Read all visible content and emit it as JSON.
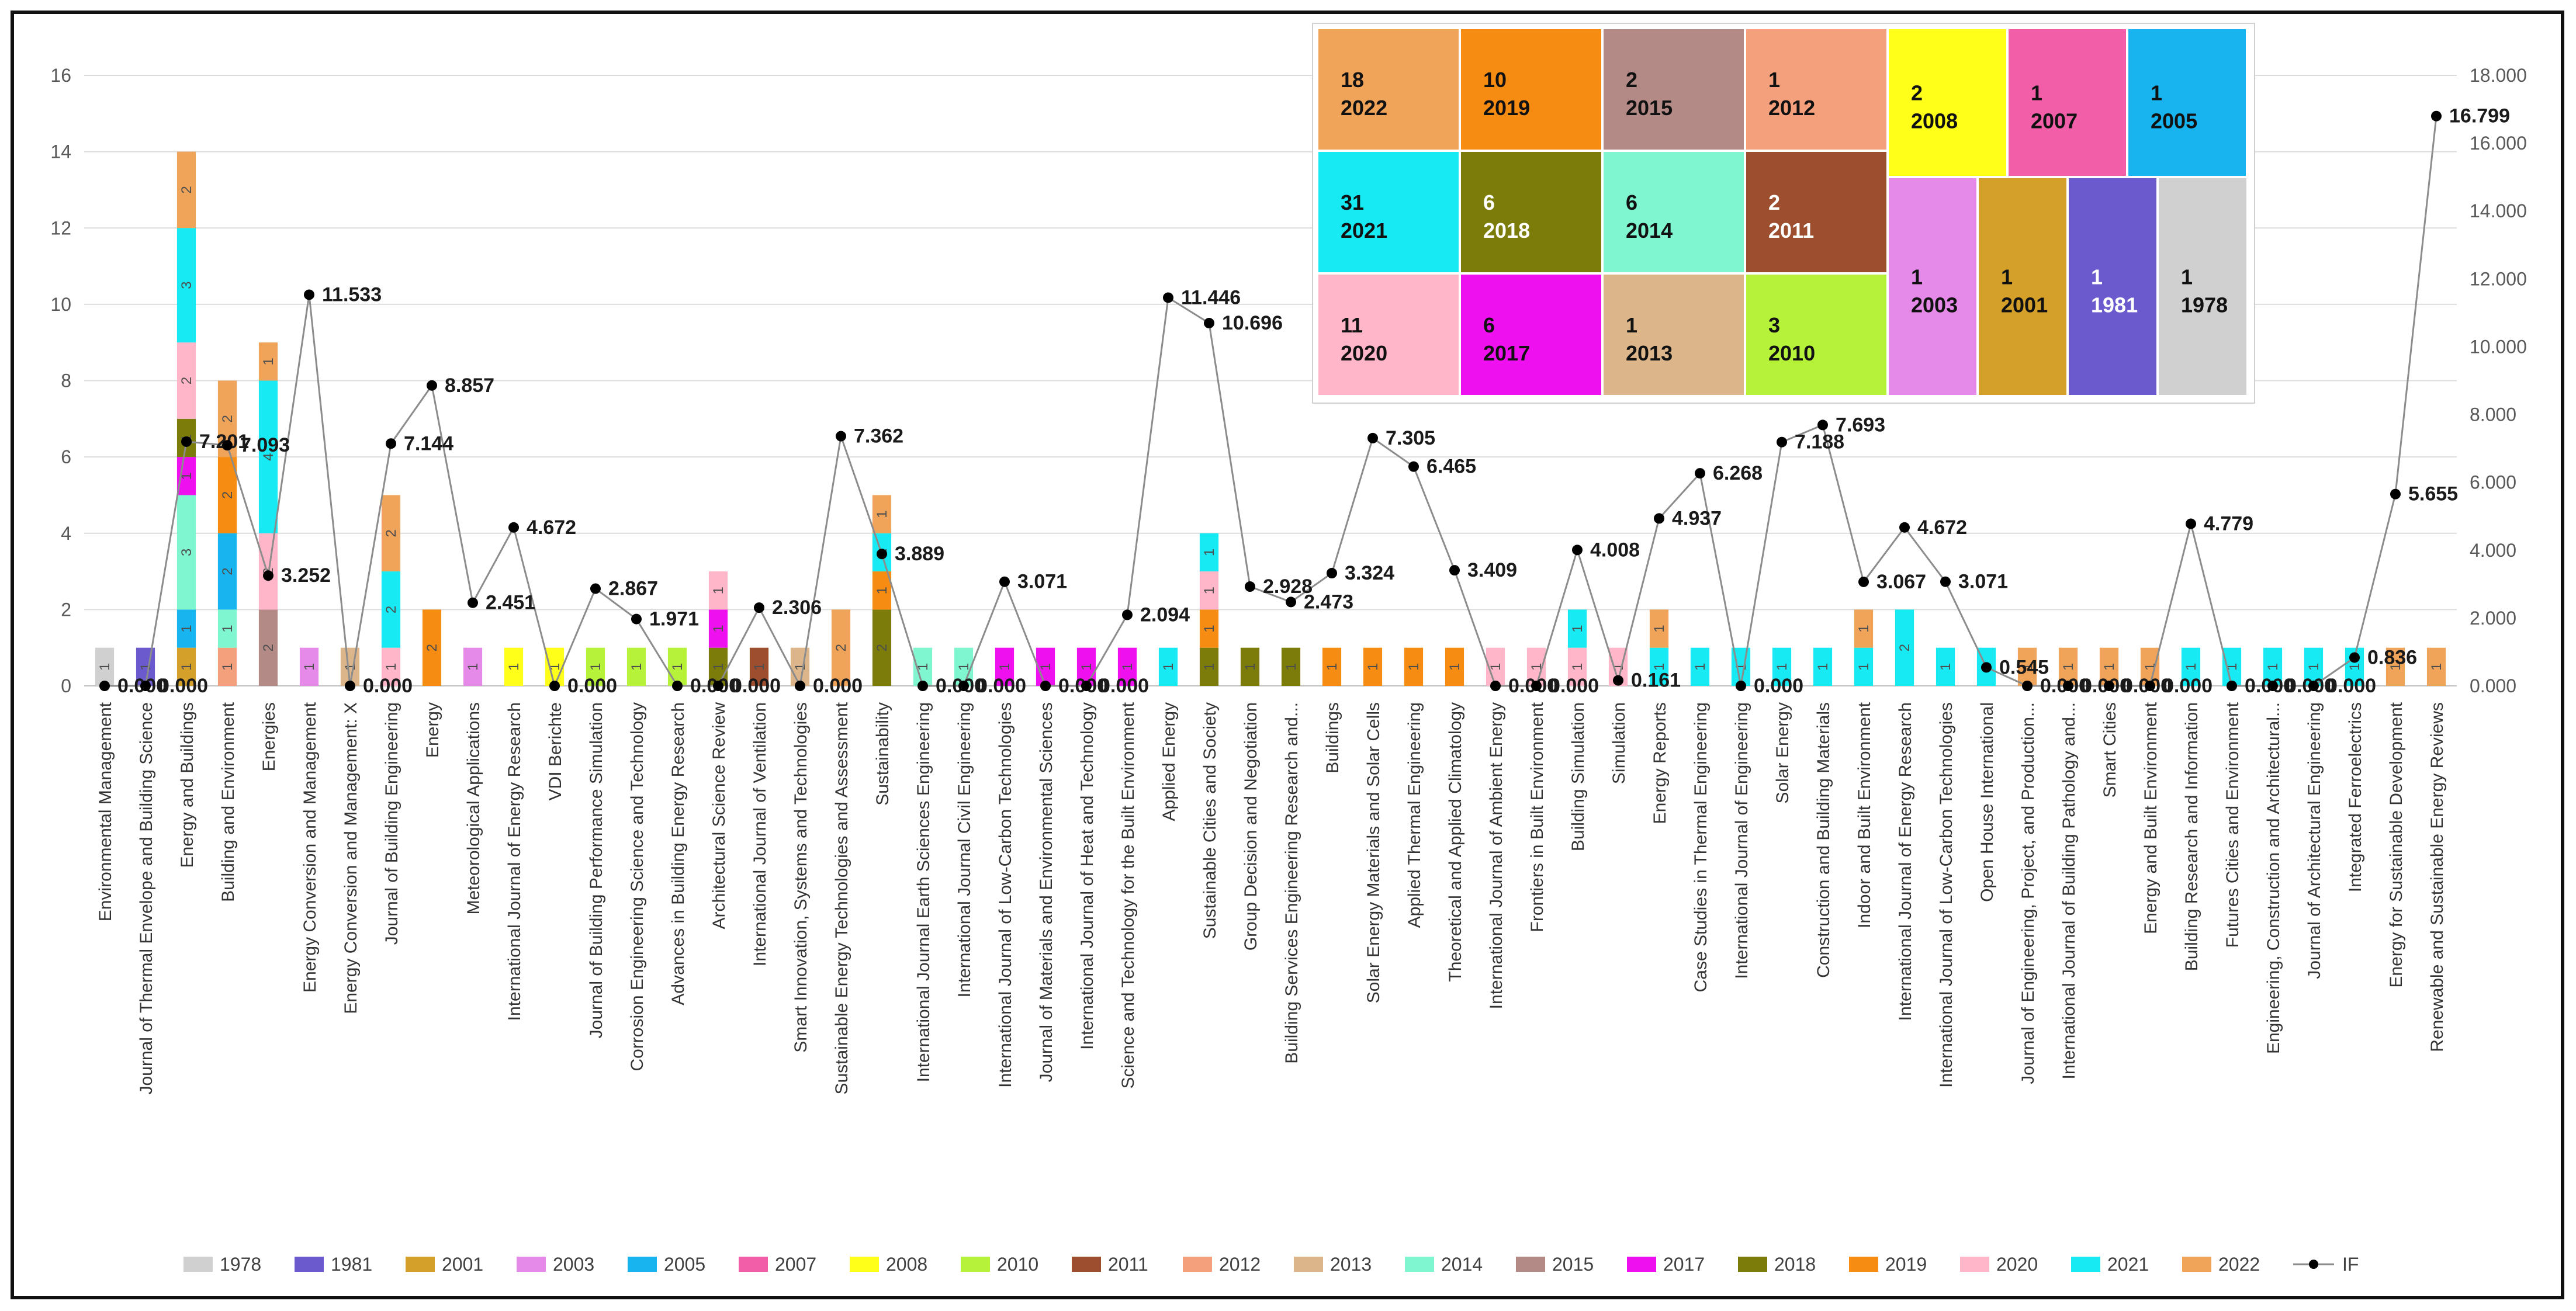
{
  "chart_data": {
    "type": "bar",
    "subtype": "stacked-bar-with-line-secondary-axis",
    "title": "",
    "xlabel": "",
    "ylabel": "",
    "ylim": [
      0,
      16
    ],
    "y_ticks": [
      "0",
      "2",
      "4",
      "6",
      "8",
      "10",
      "12",
      "14",
      "16"
    ],
    "y2lim": [
      0,
      18
    ],
    "y2_ticks": [
      "0.000",
      "2.000",
      "4.000",
      "6.000",
      "8.000",
      "10.000",
      "12.000",
      "14.000",
      "16.000",
      "18.000"
    ],
    "legend_position": "bottom",
    "legend": [
      {
        "name": "1978",
        "color": "#d0d0d0"
      },
      {
        "name": "1981",
        "color": "#6a5acd"
      },
      {
        "name": "2001",
        "color": "#d4a02a"
      },
      {
        "name": "2003",
        "color": "#e58ae8"
      },
      {
        "name": "2005",
        "color": "#18b4f0"
      },
      {
        "name": "2007",
        "color": "#f25fa8"
      },
      {
        "name": "2008",
        "color": "#ffff1a"
      },
      {
        "name": "2010",
        "color": "#b6f23a"
      },
      {
        "name": "2011",
        "color": "#9c4e2e"
      },
      {
        "name": "2012",
        "color": "#f5a07c"
      },
      {
        "name": "2013",
        "color": "#dcb68a"
      },
      {
        "name": "2014",
        "color": "#7ff5d0"
      },
      {
        "name": "2015",
        "color": "#b38a85"
      },
      {
        "name": "2017",
        "color": "#ee10ee"
      },
      {
        "name": "2018",
        "color": "#7c7c0a"
      },
      {
        "name": "2019",
        "color": "#f68c12"
      },
      {
        "name": "2020",
        "color": "#ffb6c8"
      },
      {
        "name": "2021",
        "color": "#17eaf2"
      },
      {
        "name": "2022",
        "color": "#f0a45a"
      },
      {
        "name": "IF",
        "color": "#000000"
      }
    ],
    "categories": [
      "Environmental Management",
      "Journal of Thermal Envelope and Building Science",
      "Energy and Buildings",
      "Building and Environment",
      "Energies",
      "Energy Conversion and Management",
      "Energy Conversion and Management: X",
      "Journal of Building Engineering",
      "Energy",
      "Meteorological Applications",
      "International Journal of Energy Research",
      "VDI Berichte",
      "Journal of Building Performance Simulation",
      "Corrosion Engineering Science and Technology",
      "Advances in Building Energy Research",
      "Architectural Science Review",
      "International Journal of Ventilation",
      "Smart Innovation, Systems and Technologies",
      "Sustainable Energy Technologies and Assessment",
      "Sustainability",
      "International Journal Earth Sciences Engineering",
      "International Journal Civil Engineering",
      "International Journal of Low-Carbon Technologies",
      "Journal of Materials and Environmental Sciences",
      "International Journal of Heat and Technology",
      "Science and Technology for the Built Environment",
      "Applied Energy",
      "Sustainable Cities and Society",
      "Group Decision and Negotiation",
      "Building Services Engineering Research and...",
      "Buildings",
      "Solar Energy Materials and Solar Cells",
      "Applied Thermal Engineering",
      "Theoretical and Applied Climatology",
      "International Journal of Ambient Energy",
      "Frontiers in Built Environment",
      "Building Simulation",
      "Simulation",
      "Energy Reports",
      "Case Studies in Thermal Engineering",
      "International Journal of Engineering",
      "Solar Energy",
      "Construction and Building Materials",
      "Indoor and Built Environment",
      "International Journal of Energy Research",
      "International Journal of Low-Carbon Technologies",
      "Open House International",
      "Journal of Engineering, Project, and Production...",
      "International Journal of Building Pathology and...",
      "Smart Cities",
      "Energy and Built Environment",
      "Building Research and Information",
      "Futures Cities and Environment",
      "Engineering, Construction and Architectural...",
      "Journal of Architectural Engineering",
      "Integrated Ferroelectrics",
      "Energy for Sustainable Development",
      "Renewable and Sustainable Energy Reviews"
    ],
    "stacks": [
      [
        {
          "year": "1978",
          "value": 1
        }
      ],
      [
        {
          "year": "1981",
          "value": 1
        }
      ],
      [
        {
          "year": "2001",
          "value": 1
        },
        {
          "year": "2005",
          "value": 1
        },
        {
          "year": "2014",
          "value": 3
        },
        {
          "year": "2017",
          "value": 1
        },
        {
          "year": "2018",
          "value": 1
        },
        {
          "year": "2020",
          "value": 2
        },
        {
          "year": "2021",
          "value": 3
        },
        {
          "year": "2022",
          "value": 2
        }
      ],
      [
        {
          "year": "2012",
          "value": 1
        },
        {
          "year": "2014",
          "value": 1
        },
        {
          "year": "2005",
          "value": 2
        },
        {
          "year": "2019",
          "value": 2
        },
        {
          "year": "2022",
          "value": 2
        }
      ],
      [
        {
          "year": "2015",
          "value": 2
        },
        {
          "year": "2020",
          "value": 2
        },
        {
          "year": "2021",
          "value": 4
        },
        {
          "year": "2022",
          "value": 1
        }
      ],
      [
        {
          "year": "2003",
          "value": 1
        }
      ],
      [
        {
          "year": "2013",
          "value": 1
        }
      ],
      [
        {
          "year": "2020",
          "value": 1
        },
        {
          "year": "2021",
          "value": 2
        },
        {
          "year": "2022",
          "value": 2
        }
      ],
      [
        {
          "year": "2019",
          "value": 2
        }
      ],
      [
        {
          "year": "2003",
          "value": 1
        }
      ],
      [
        {
          "year": "2008",
          "value": 1
        }
      ],
      [
        {
          "year": "2008",
          "value": 1
        }
      ],
      [
        {
          "year": "2010",
          "value": 1
        }
      ],
      [
        {
          "year": "2010",
          "value": 1
        }
      ],
      [
        {
          "year": "2010",
          "value": 1
        }
      ],
      [
        {
          "year": "2018",
          "value": 1
        },
        {
          "year": "2017",
          "value": 1
        },
        {
          "year": "2020",
          "value": 1
        }
      ],
      [
        {
          "year": "2011",
          "value": 1
        }
      ],
      [
        {
          "year": "2013",
          "value": 1
        }
      ],
      [
        {
          "year": "2022",
          "value": 2
        }
      ],
      [
        {
          "year": "2018",
          "value": 2
        },
        {
          "year": "2019",
          "value": 1
        },
        {
          "year": "2021",
          "value": 1
        },
        {
          "year": "2022",
          "value": 1
        }
      ],
      [
        {
          "year": "2014",
          "value": 1
        }
      ],
      [
        {
          "year": "2014",
          "value": 1
        }
      ],
      [
        {
          "year": "2017",
          "value": 1
        }
      ],
      [
        {
          "year": "2017",
          "value": 1
        }
      ],
      [
        {
          "year": "2017",
          "value": 1
        }
      ],
      [
        {
          "year": "2017",
          "value": 1
        }
      ],
      [
        {
          "year": "2021",
          "value": 1
        }
      ],
      [
        {
          "year": "2018",
          "value": 1
        },
        {
          "year": "2019",
          "value": 1
        },
        {
          "year": "2020",
          "value": 1
        },
        {
          "year": "2021",
          "value": 1
        }
      ],
      [
        {
          "year": "2018",
          "value": 1
        }
      ],
      [
        {
          "year": "2018",
          "value": 1
        }
      ],
      [
        {
          "year": "2019",
          "value": 1
        }
      ],
      [
        {
          "year": "2019",
          "value": 1
        }
      ],
      [
        {
          "year": "2019",
          "value": 1
        }
      ],
      [
        {
          "year": "2019",
          "value": 1
        }
      ],
      [
        {
          "year": "2020",
          "value": 1
        }
      ],
      [
        {
          "year": "2020",
          "value": 1
        }
      ],
      [
        {
          "year": "2020",
          "value": 1
        },
        {
          "year": "2021",
          "value": 1
        }
      ],
      [
        {
          "year": "2020",
          "value": 1
        }
      ],
      [
        {
          "year": "2021",
          "value": 1
        },
        {
          "year": "2022",
          "value": 1
        }
      ],
      [
        {
          "year": "2021",
          "value": 1
        }
      ],
      [
        {
          "year": "2021",
          "value": 1
        }
      ],
      [
        {
          "year": "2021",
          "value": 1
        }
      ],
      [
        {
          "year": "2021",
          "value": 1
        }
      ],
      [
        {
          "year": "2021",
          "value": 1
        },
        {
          "year": "2022",
          "value": 1
        }
      ],
      [
        {
          "year": "2021",
          "value": 2
        }
      ],
      [
        {
          "year": "2021",
          "value": 1
        }
      ],
      [
        {
          "year": "2021",
          "value": 1
        }
      ],
      [
        {
          "year": "2022",
          "value": 1
        }
      ],
      [
        {
          "year": "2022",
          "value": 1
        }
      ],
      [
        {
          "year": "2022",
          "value": 1
        }
      ],
      [
        {
          "year": "2022",
          "value": 1
        }
      ],
      [
        {
          "year": "2021",
          "value": 1
        }
      ],
      [
        {
          "year": "2021",
          "value": 1
        }
      ],
      [
        {
          "year": "2021",
          "value": 1
        }
      ],
      [
        {
          "year": "2021",
          "value": 1
        }
      ],
      [
        {
          "year": "2021",
          "value": 1
        }
      ],
      [
        {
          "year": "2022",
          "value": 1
        }
      ],
      [
        {
          "year": "2022",
          "value": 1
        }
      ]
    ],
    "impact_factor": [
      0.0,
      0.0,
      7.201,
      7.093,
      3.252,
      11.533,
      0.0,
      7.144,
      8.857,
      2.451,
      4.672,
      0.0,
      2.867,
      1.971,
      0.0,
      0.0,
      2.306,
      0.0,
      7.362,
      3.889,
      0.0,
      0.0,
      3.071,
      0.0,
      0.0,
      2.094,
      11.446,
      10.696,
      2.928,
      2.473,
      3.324,
      7.305,
      6.465,
      3.409,
      0.0,
      0.0,
      4.008,
      0.161,
      4.937,
      6.268,
      0.0,
      7.188,
      7.693,
      3.067,
      4.672,
      3.071,
      0.545,
      0.0,
      0.0,
      0.0,
      0.0,
      4.779,
      0.0,
      0.0,
      0.0,
      0.836,
      5.655,
      16.799
    ],
    "if_labels": [
      "0.000",
      "0.000",
      "7.201",
      "7.093",
      "3.252",
      "11.533",
      "0.000",
      "7.144",
      "8.857",
      "2.451",
      "4.672",
      "0.000",
      "2.867",
      "1.971",
      "0.000",
      "0.000",
      "2.306",
      "0.000",
      "7.362",
      "3.889",
      "0.000",
      "0.000",
      "3.071",
      "0.000",
      "0.000",
      "2.094",
      "11.446",
      "10.696",
      "2.928",
      "2.473",
      "3.324",
      "7.305",
      "6.465",
      "3.409",
      "0.000",
      "0.000",
      "4.008",
      "0.161",
      "4.937",
      "6.268",
      "0.000",
      "7.188",
      "7.693",
      "3.067",
      "4.672",
      "3.071",
      "0.545",
      "0.000",
      "0.000",
      "0.000",
      "0.000",
      "4.779",
      "0.000",
      "0.000",
      "0.000",
      "0.836",
      "5.655",
      "16.799"
    ],
    "treemap": [
      {
        "year": "2022",
        "count": 18,
        "color": "#f0a45a"
      },
      {
        "year": "2019",
        "count": 10,
        "color": "#f68c12"
      },
      {
        "year": "2015",
        "count": 2,
        "color": "#b38a85"
      },
      {
        "year": "2012",
        "count": 1,
        "color": "#f5a07c"
      },
      {
        "year": "2008",
        "count": 2,
        "color": "#ffff1a"
      },
      {
        "year": "2007",
        "count": 1,
        "color": "#f25fa8"
      },
      {
        "year": "2005",
        "count": 1,
        "color": "#18b4f0"
      },
      {
        "year": "2021",
        "count": 31,
        "color": "#17eaf2"
      },
      {
        "year": "2018",
        "count": 6,
        "color": "#7c7c0a"
      },
      {
        "year": "2014",
        "count": 6,
        "color": "#7ff5d0"
      },
      {
        "year": "2011",
        "count": 2,
        "color": "#9c4e2e"
      },
      {
        "year": "2020",
        "count": 11,
        "color": "#ffb6c8"
      },
      {
        "year": "2017",
        "count": 6,
        "color": "#ee10ee"
      },
      {
        "year": "2013",
        "count": 1,
        "color": "#dcb68a"
      },
      {
        "year": "2010",
        "count": 3,
        "color": "#b6f23a"
      },
      {
        "year": "2003",
        "count": 1,
        "color": "#e58ae8"
      },
      {
        "year": "2001",
        "count": 1,
        "color": "#d4a02a"
      },
      {
        "year": "1981",
        "count": 1,
        "color": "#6a5acd"
      },
      {
        "year": "1978",
        "count": 1,
        "color": "#d0d0d0"
      }
    ]
  }
}
